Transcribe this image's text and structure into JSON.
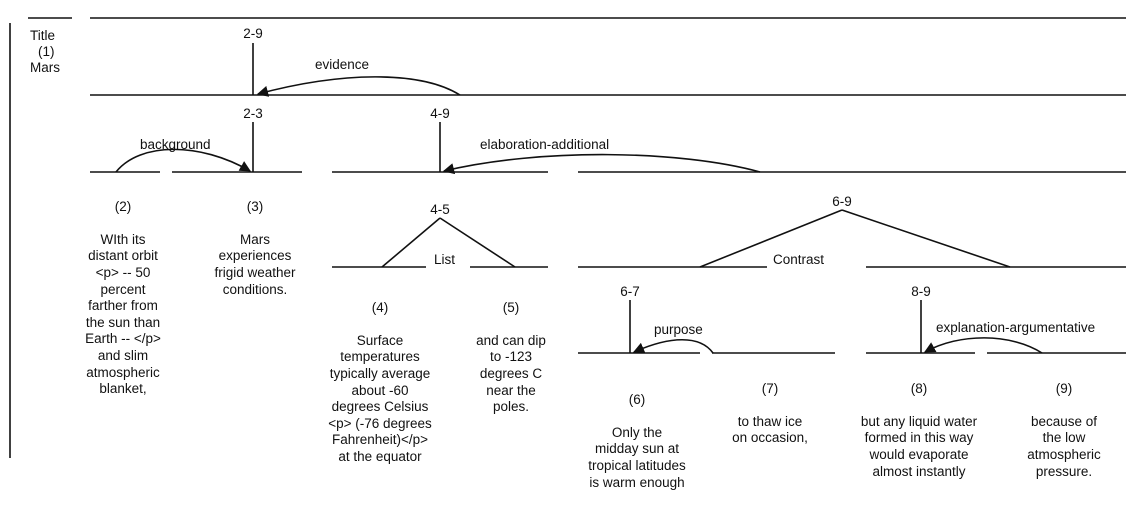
{
  "title": {
    "label": "Title",
    "number": "(1)",
    "text": "Mars"
  },
  "spans": {
    "s29": "2-9",
    "s23": "2-3",
    "s49": "4-9",
    "s45": "4-5",
    "s69": "6-9",
    "s67": "6-7",
    "s89": "8-9"
  },
  "relations": {
    "evidence": "evidence",
    "background": "background",
    "elaboration": "elaboration-additional",
    "list": "List",
    "contrast": "Contrast",
    "purpose": "purpose",
    "explanation": "explanation-argumentative"
  },
  "segments": [
    {
      "num": "(2)",
      "text": "WIth its\ndistant orbit\n<p> -- 50\npercent\nfarther from\nthe sun than\nEarth -- </p>\nand slim\natmospheric\nblanket,"
    },
    {
      "num": "(3)",
      "text": "Mars\nexperiences\nfrigid weather\nconditions."
    },
    {
      "num": "(4)",
      "text": "Surface\ntemperatures\ntypically average\nabout -60\ndegrees Celsius\n<p> (-76 degrees\nFahrenheit)</p>\nat the equator"
    },
    {
      "num": "(5)",
      "text": "and can dip\nto -123\ndegrees C\nnear the\npoles."
    },
    {
      "num": "(6)",
      "text": "Only the\nmidday sun at\ntropical latitudes\nis warm enough"
    },
    {
      "num": "(7)",
      "text": "to thaw ice\non occasion,"
    },
    {
      "num": "(8)",
      "text": "but any liquid water\nformed in this way\nwould evaporate\nalmost instantly"
    },
    {
      "num": "(9)",
      "text": "because of\nthe low\natmospheric\npressure."
    }
  ]
}
